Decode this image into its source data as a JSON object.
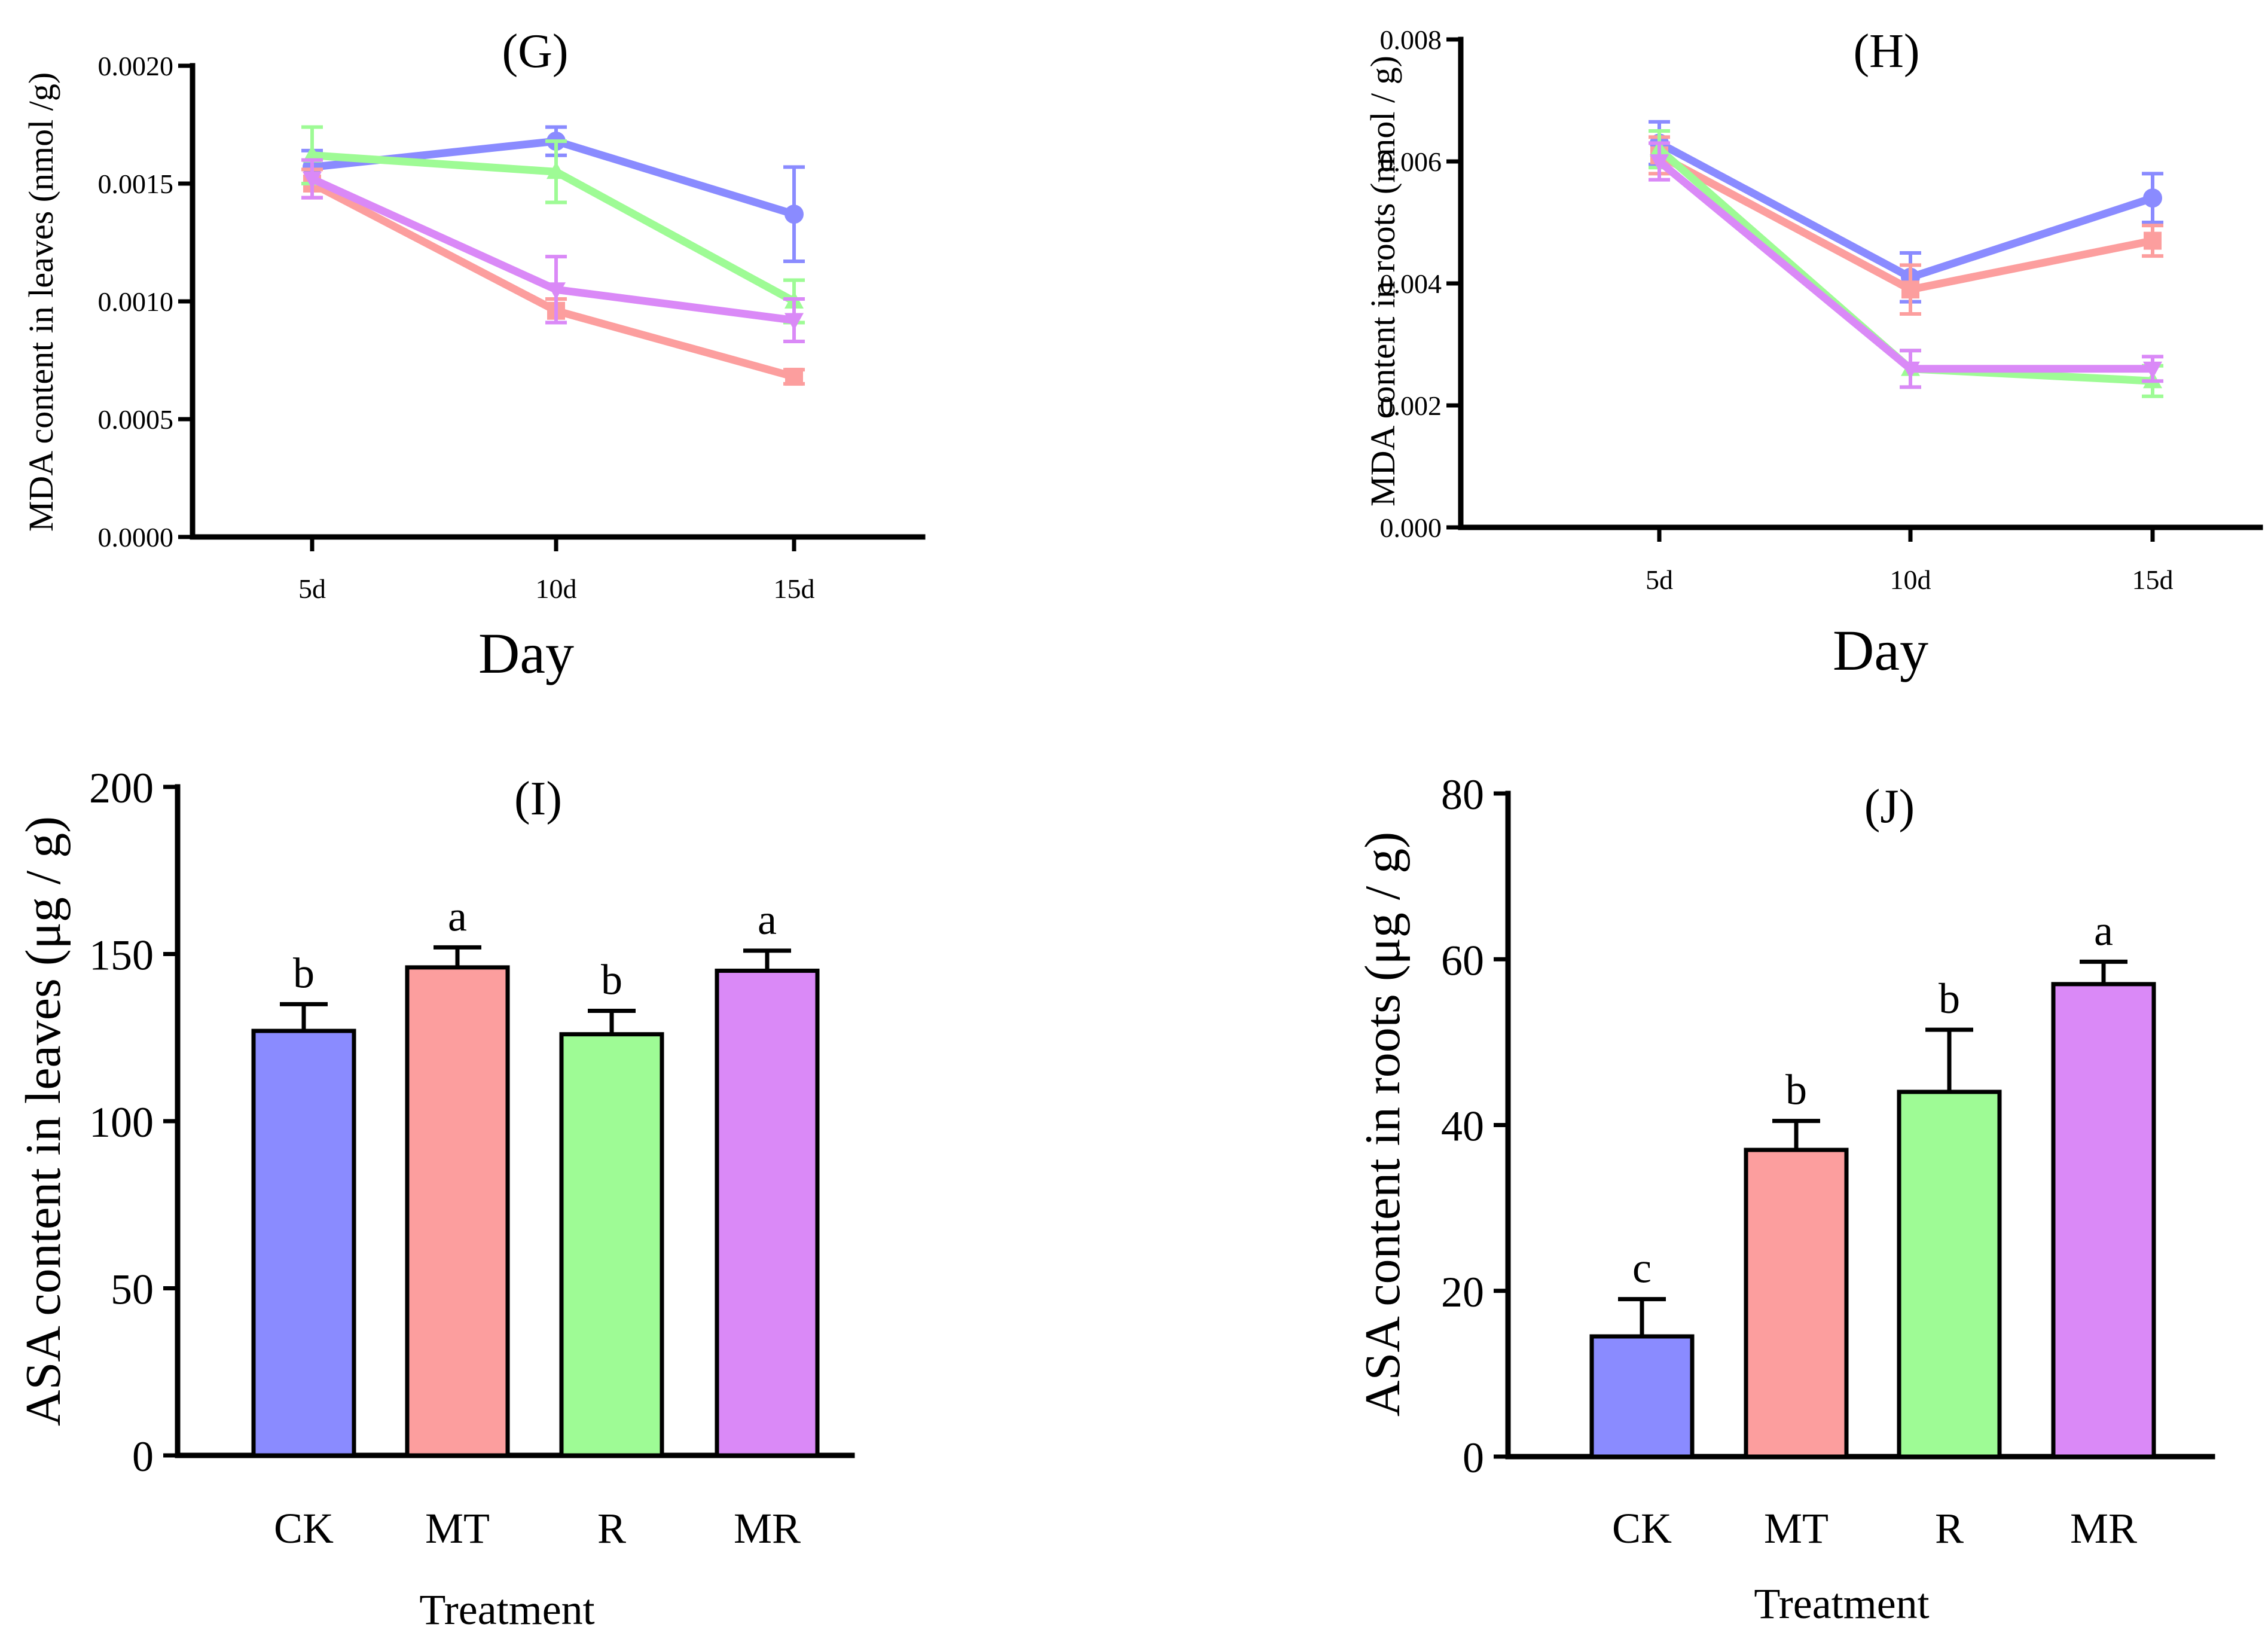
{
  "colors": {
    "CK": "#8a8bff",
    "MT": "#fc9e9e",
    "R": "#9efb95",
    "MR": "#da89f7"
  },
  "chart_data": [
    {
      "id": "G",
      "type": "line",
      "title": "(G)",
      "xlabel": "Day",
      "ylabel": "MDA content in leaves (nmol /g)",
      "categories": [
        "5d",
        "10d",
        "15d"
      ],
      "ylim": [
        0,
        0.002
      ],
      "yticks": [
        0.0,
        0.0005,
        0.001,
        0.0015,
        0.002
      ],
      "yticklabels": [
        "0.0000",
        "0.0005",
        "0.0010",
        "0.0015",
        "0.0020"
      ],
      "series": [
        {
          "name": "CK",
          "values": [
            0.00157,
            0.00168,
            0.00137
          ],
          "errors": [
            7e-05,
            6e-05,
            0.0002
          ]
        },
        {
          "name": "MT",
          "values": [
            0.0015,
            0.00096,
            0.00068
          ],
          "errors": [
            6e-05,
            5e-05,
            3e-05
          ]
        },
        {
          "name": "R",
          "values": [
            0.00162,
            0.00155,
            0.001
          ],
          "errors": [
            0.00012,
            0.00013,
            9e-05
          ]
        },
        {
          "name": "MR",
          "values": [
            0.00152,
            0.00105,
            0.00092
          ],
          "errors": [
            8e-05,
            0.00014,
            9e-05
          ]
        }
      ]
    },
    {
      "id": "H",
      "type": "line",
      "title": "(H)",
      "xlabel": "Day",
      "ylabel": "MDA content in roots (nmol / g)",
      "categories": [
        "5d",
        "10d",
        "15d"
      ],
      "ylim": [
        0,
        0.008
      ],
      "yticks": [
        0.0,
        0.002,
        0.004,
        0.006,
        0.008
      ],
      "yticklabels": [
        "0.000",
        "0.002",
        "0.004",
        "0.006",
        "0.008"
      ],
      "series": [
        {
          "name": "CK",
          "values": [
            0.0063,
            0.0041,
            0.0054
          ],
          "errors": [
            0.00035,
            0.0004,
            0.0004
          ]
        },
        {
          "name": "MT",
          "values": [
            0.0061,
            0.0039,
            0.0047
          ],
          "errors": [
            0.0003,
            0.0004,
            0.00025
          ]
        },
        {
          "name": "R",
          "values": [
            0.0062,
            0.0026,
            0.0024
          ],
          "errors": [
            0.0003,
            0.0003,
            0.00025
          ]
        },
        {
          "name": "MR",
          "values": [
            0.006,
            0.0026,
            0.0026
          ],
          "errors": [
            0.0003,
            0.0003,
            0.0002
          ]
        }
      ]
    },
    {
      "id": "I",
      "type": "bar",
      "title": "(I)",
      "xlabel": "Treatment",
      "ylabel": "ASA content in leaves (μg / g)",
      "categories": [
        "CK",
        "MT",
        "R",
        "MR"
      ],
      "values": [
        127,
        146,
        126,
        145
      ],
      "errors": [
        8,
        6,
        7,
        6
      ],
      "significance": [
        "b",
        "a",
        "b",
        "a"
      ],
      "ylim": [
        0,
        200
      ],
      "yticks": [
        0,
        50,
        100,
        150,
        200
      ],
      "yticklabels": [
        "0",
        "50",
        "100",
        "150",
        "200"
      ]
    },
    {
      "id": "J",
      "type": "bar",
      "title": "(J)",
      "xlabel": "Treatment",
      "ylabel": "ASA content in roots (μg / g)",
      "categories": [
        "CK",
        "MT",
        "R",
        "MR"
      ],
      "values": [
        14.5,
        37,
        44,
        57
      ],
      "errors": [
        4.5,
        3.5,
        7.5,
        2.7
      ],
      "significance": [
        "c",
        "b",
        "b",
        "a"
      ],
      "ylim": [
        0,
        80
      ],
      "yticks": [
        0,
        20,
        40,
        60,
        80
      ],
      "yticklabels": [
        "0",
        "20",
        "40",
        "60",
        "80"
      ]
    }
  ]
}
